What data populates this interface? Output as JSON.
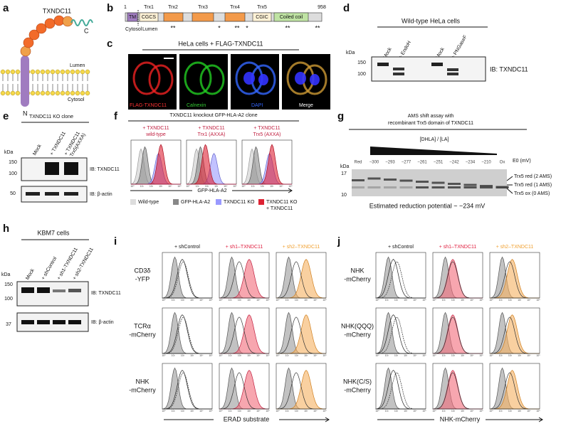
{
  "a": {
    "label": "a",
    "title": "TXNDC11",
    "c_term": "C",
    "lumen": "Lumen",
    "cytosol": "Cytosol",
    "n_term": "N"
  },
  "b": {
    "label": "b",
    "start": "1",
    "end": "958",
    "domains": [
      "TM",
      "CGCS",
      "CGIC",
      "Coiled coil"
    ],
    "trx": [
      "Trx1",
      "Trx2",
      "Trx3",
      "Trx4",
      "Trx5"
    ],
    "cytosol": "Cytosol",
    "lumen": "Lumen",
    "marks": [
      "**",
      "*",
      "**",
      "*",
      "**",
      "**"
    ]
  },
  "c": {
    "label": "c",
    "title": "HeLa cells + FLAG-TXNDC11",
    "channels": [
      "FLAG-TXNDC11",
      "Calnexin",
      "DAPI",
      "Merge"
    ]
  },
  "d": {
    "label": "d",
    "title": "Wild-type HeLa cells",
    "kda": "kDa",
    "markers": [
      "150",
      "100"
    ],
    "lanes": [
      "Mock",
      "+ EndoH",
      "Mock",
      "+ PNGaseF"
    ],
    "blot": "IB: TXNDC11"
  },
  "e": {
    "label": "e",
    "title": "TXNDC11 KO clone",
    "kda": "kDa",
    "lanes": [
      [
        "Mock"
      ],
      [
        "+ TXNDC11"
      ],
      [
        "+ TXNDC11",
        "Trx5(AXXA)"
      ]
    ],
    "markers": [
      "150",
      "100",
      "50"
    ],
    "blots": [
      "IB: TXNDC11",
      "IB: β-actin"
    ]
  },
  "f": {
    "label": "f",
    "title": "TXNDC11 knockout GFP-HLA-A2 clone",
    "columns": [
      [
        "+ TXNDC11",
        "wild-type"
      ],
      [
        "+ TXNDC11",
        "Trx1 (AXXA)"
      ],
      [
        "+ TXNDC11",
        "Trx5 (AXXA)"
      ]
    ],
    "axis": "GFP-HLA-A2",
    "legend": [
      [
        "Wild-type"
      ],
      [
        "GFP-HLA-A2"
      ],
      [
        "TXNDC11 KO"
      ],
      [
        "TXNDC11 KO",
        "+ TXNDC11"
      ]
    ]
  },
  "g": {
    "label": "g",
    "title": [
      "AMS shift assay with",
      "recombinant Trx5 domain of TXNDC11"
    ],
    "ratio": "[DHLA] / [LA]",
    "lanes": [
      "Red",
      "−300",
      "−293",
      "−277",
      "−261",
      "−251",
      "−242",
      "−234",
      "−210",
      "Ox"
    ],
    "e0": "E0 (mV)",
    "kda": "kDa",
    "markers": [
      "17",
      "10"
    ],
    "bands": [
      "Trx5 red (2 AMS)",
      "Trx5 red (1 AMS)",
      "Trx5 ox (0 AMS)"
    ],
    "estimate": "Estimated reduction potential ~ −234 mV"
  },
  "h": {
    "label": "h",
    "title": "KBM7 cells",
    "kda": "kDa",
    "lanes": [
      "Mock",
      "+ shControl",
      "+ sh1-TXNDC11",
      "+ sh2-TXNDC11"
    ],
    "markers": [
      "150",
      "100",
      "37"
    ],
    "blots": [
      "IB: TXNDC11",
      "IB: β-actin"
    ]
  },
  "i": {
    "label": "i",
    "columns": [
      "+ shControl",
      "+ sh1–TXNDC11",
      "+ sh2–TXNDC11"
    ],
    "rows": [
      [
        "CD3δ",
        "-YFP"
      ],
      [
        "TCRα",
        "-mCherry"
      ],
      [
        "NHK",
        "-mCherry"
      ]
    ],
    "axis": "ERAD substrate"
  },
  "j": {
    "label": "j",
    "columns": [
      "+ shControl",
      "+ sh1–TXNDC11",
      "+ sh2–TXNDC11"
    ],
    "rows": [
      [
        "NHK",
        "-mCherry"
      ],
      [
        "NHK(QQQ)",
        "-mCherry"
      ],
      [
        "NHK(C/S)",
        "-mCherry"
      ]
    ],
    "axis": "NHK-mCherry"
  },
  "hist_ticks": [
    "10⁰",
    "10¹",
    "10²",
    "10³",
    "10⁴",
    "10⁵"
  ]
}
